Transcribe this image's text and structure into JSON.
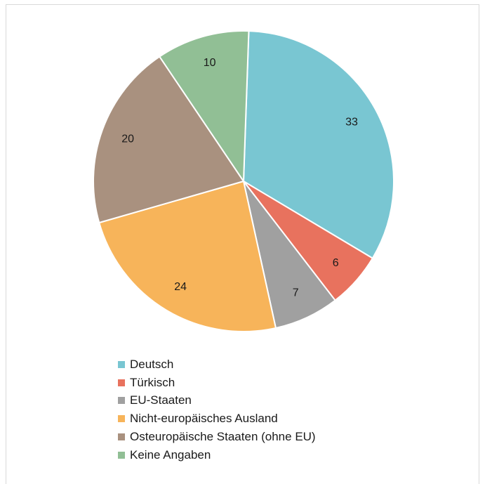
{
  "chart_data": {
    "type": "pie",
    "categories": [
      "Deutsch",
      "Türkisch",
      "EU-Staaten",
      "Nicht-europäisches Ausland",
      "Osteuropäische Staaten (ohne EU)",
      "Keine Angaben"
    ],
    "values": [
      33,
      6,
      7,
      24,
      20,
      10
    ],
    "colors": [
      "#79c6d2",
      "#e8725e",
      "#a0a0a0",
      "#f7b45a",
      "#a9917f",
      "#91bf95"
    ],
    "start_angle_deg": 2,
    "direction": "clockwise",
    "data_labels": true,
    "legend_placement": "bottom",
    "title": ""
  }
}
